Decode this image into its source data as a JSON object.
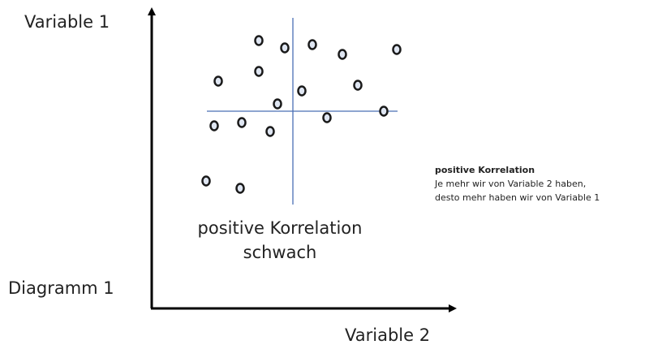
{
  "labels": {
    "y_axis": "Variable 1",
    "x_axis": "Variable 2",
    "diagram": "Diagramm 1"
  },
  "caption": {
    "line1": "positive Korrelation",
    "line2": "schwach"
  },
  "note": {
    "title": "positive Korrelation",
    "lines": [
      "Je mehr wir von Variable 2 haben,",
      "desto mehr haben wir von Variable 1"
    ]
  }
}
